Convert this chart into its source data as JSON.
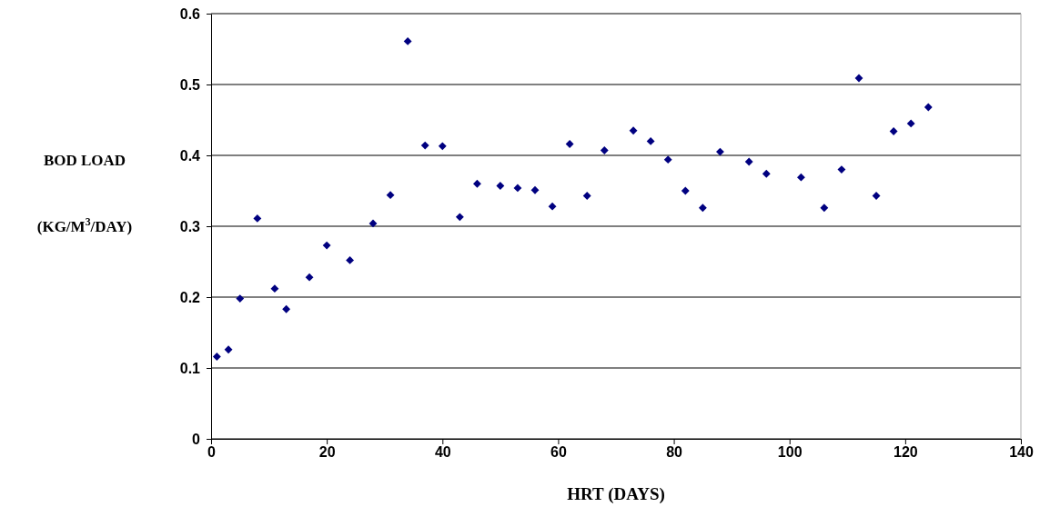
{
  "chart_data": {
    "type": "scatter",
    "xlabel": "HRT (DAYS)",
    "ylabel": "BOD LOAD (KG/M$^{3}$/DAY)",
    "x": [
      1,
      3,
      5,
      8,
      11,
      13,
      17,
      20,
      24,
      28,
      31,
      34,
      37,
      40,
      43,
      46,
      50,
      53,
      56,
      59,
      62,
      65,
      68,
      73,
      76,
      79,
      82,
      85,
      88,
      93,
      96,
      102,
      106,
      109,
      112,
      115,
      118,
      121,
      124
    ],
    "series": [
      {
        "color": "#000080",
        "values": [
          0.116,
          0.126,
          0.198,
          0.311,
          0.212,
          0.183,
          0.228,
          0.273,
          0.252,
          0.304,
          0.344,
          0.561,
          0.414,
          0.413,
          0.313,
          0.36,
          0.357,
          0.354,
          0.351,
          0.328,
          0.416,
          0.343,
          0.407,
          0.435,
          0.42,
          0.394,
          0.35,
          0.326,
          0.405,
          0.391,
          0.374,
          0.369,
          0.326,
          0.38,
          0.509,
          0.343,
          0.434,
          0.445,
          0.468
        ]
      }
    ],
    "xlim": [
      0,
      140
    ],
    "xticks": [
      0,
      20,
      40,
      60,
      80,
      100,
      120,
      140
    ],
    "ylim": [
      0,
      0.6
    ],
    "yticks": [
      0,
      0.1,
      0.2,
      0.3,
      0.4,
      0.5,
      0.6
    ],
    "grid": "y",
    "marker": "diamond"
  }
}
